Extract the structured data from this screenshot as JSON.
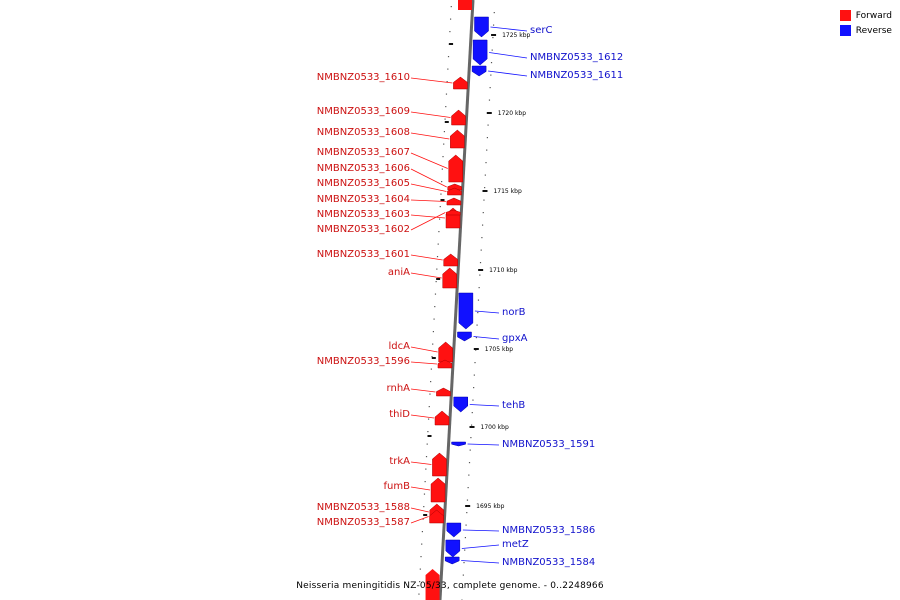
{
  "legend": {
    "forward_label": "Forward",
    "forward_color": "#ff1111",
    "reverse_label": "Reverse",
    "reverse_color": "#1111ff"
  },
  "caption": "Neisseria meningitidis NZ-05/33, complete genome. - 0..2248966",
  "ticks": [
    {
      "label": "1725 kbp"
    },
    {
      "label": "1720 kbp"
    },
    {
      "label": "1715 kbp"
    },
    {
      "label": "1710 kbp"
    },
    {
      "label": "1705 kbp"
    },
    {
      "label": "1700 kbp"
    },
    {
      "label": "1695 kbp"
    }
  ],
  "forward_genes": [
    "NMBNZ0533_1610",
    "NMBNZ0533_1609",
    "NMBNZ0533_1608",
    "NMBNZ0533_1607",
    "NMBNZ0533_1606",
    "NMBNZ0533_1605",
    "NMBNZ0533_1604",
    "NMBNZ0533_1603",
    "NMBNZ0533_1602",
    "NMBNZ0533_1601",
    "aniA",
    "ldcA",
    "NMBNZ0533_1596",
    "rnhA",
    "thiD",
    "trkA",
    "fumB",
    "NMBNZ0533_1588",
    "NMBNZ0533_1587"
  ],
  "reverse_genes": [
    "serC",
    "NMBNZ0533_1612",
    "NMBNZ0533_1611",
    "norB",
    "gpxA",
    "tehB",
    "NMBNZ0533_1591",
    "NMBNZ0533_1586",
    "metZ",
    "NMBNZ0533_1584"
  ]
}
